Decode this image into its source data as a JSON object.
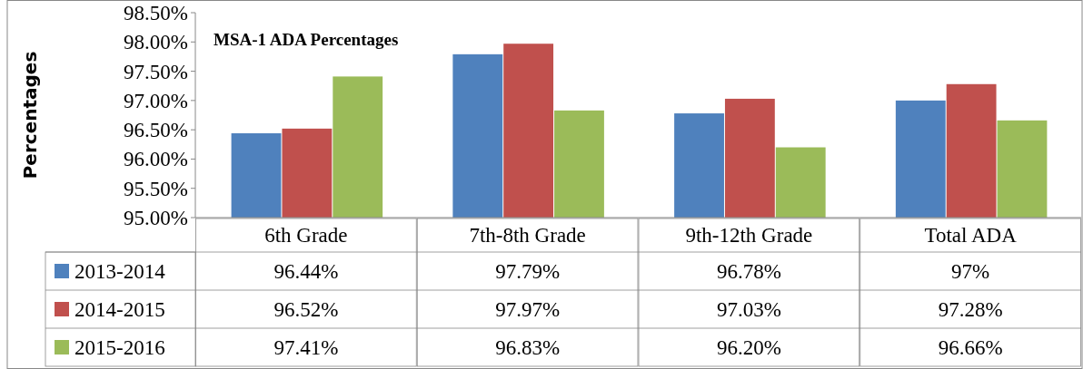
{
  "chart_data": {
    "type": "bar",
    "title": "MSA-1 ADA Percentages",
    "ylabel": "Percentages",
    "categories": [
      "6th Grade",
      "7th-8th Grade",
      "9th-12th Grade",
      "Total ADA"
    ],
    "series": [
      {
        "name": "2013-2014",
        "color": "#4f81bd",
        "values": [
          96.44,
          97.79,
          96.78,
          97
        ],
        "value_labels": [
          "96.44%",
          "97.79%",
          "96.78%",
          "97%"
        ]
      },
      {
        "name": "2014-2015",
        "color": "#c0504d",
        "values": [
          96.52,
          97.97,
          97.03,
          97.28
        ],
        "value_labels": [
          "96.52%",
          "97.97%",
          "97.03%",
          "97.28%"
        ]
      },
      {
        "name": "2015-2016",
        "color": "#9bbb59",
        "values": [
          97.41,
          96.83,
          96.2,
          96.66
        ],
        "value_labels": [
          "97.41%",
          "96.83%",
          "96.20%",
          "96.66%"
        ]
      }
    ],
    "ylim": [
      95,
      98.5
    ],
    "yticks": [
      {
        "value": 95,
        "label": "95.00%"
      },
      {
        "value": 95.5,
        "label": "95.50%"
      },
      {
        "value": 96,
        "label": "96.00%"
      },
      {
        "value": 96.5,
        "label": "96.50%"
      },
      {
        "value": 97,
        "label": "97.00%"
      },
      {
        "value": 97.5,
        "label": "97.50%"
      },
      {
        "value": 98,
        "label": "98.00%"
      },
      {
        "value": 98.5,
        "label": "98.50%"
      }
    ],
    "legend": "bottom"
  }
}
